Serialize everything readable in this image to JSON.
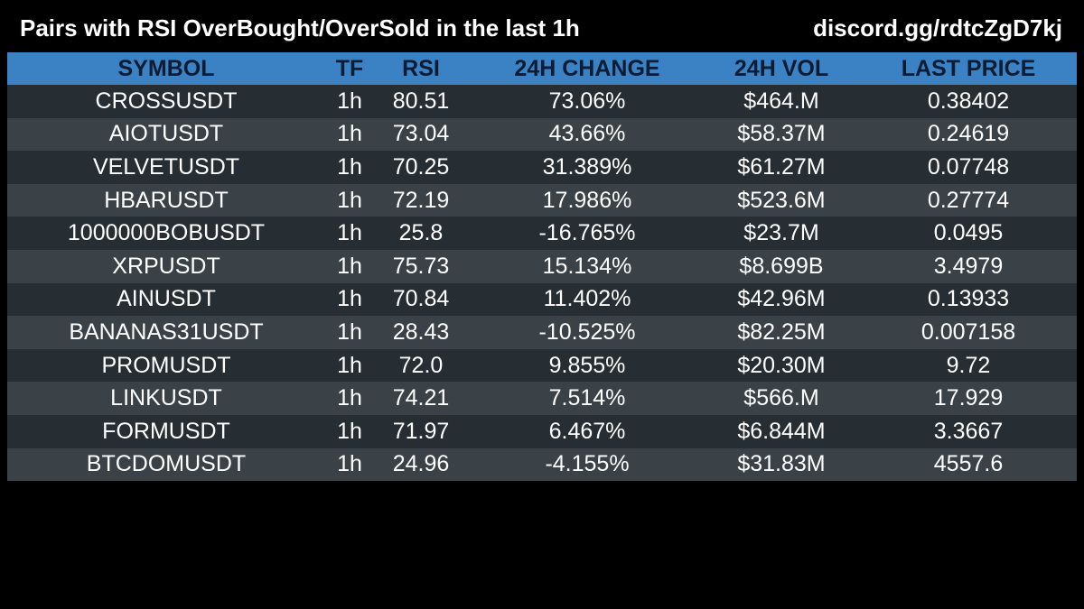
{
  "header": {
    "title": "Pairs with RSI OverBought/OverSold in the last 1h",
    "invite": "discord.gg/rdtcZgD7kj"
  },
  "table": {
    "columns": {
      "symbol": "SYMBOL",
      "tf": "TF",
      "rsi": "RSI",
      "change": "24H CHANGE",
      "vol": "24H VOL",
      "price": "LAST PRICE"
    },
    "rows": [
      {
        "symbol": "CROSSUSDT",
        "tf": "1h",
        "rsi": "80.51",
        "change": "73.06%",
        "vol": "$464.M",
        "price": "0.38402"
      },
      {
        "symbol": "AIOTUSDT",
        "tf": "1h",
        "rsi": "73.04",
        "change": "43.66%",
        "vol": "$58.37M",
        "price": "0.24619"
      },
      {
        "symbol": "VELVETUSDT",
        "tf": "1h",
        "rsi": "70.25",
        "change": "31.389%",
        "vol": "$61.27M",
        "price": "0.07748"
      },
      {
        "symbol": "HBARUSDT",
        "tf": "1h",
        "rsi": "72.19",
        "change": "17.986%",
        "vol": "$523.6M",
        "price": "0.27774"
      },
      {
        "symbol": "1000000BOBUSDT",
        "tf": "1h",
        "rsi": "25.8",
        "change": "-16.765%",
        "vol": "$23.7M",
        "price": "0.0495"
      },
      {
        "symbol": "XRPUSDT",
        "tf": "1h",
        "rsi": "75.73",
        "change": "15.134%",
        "vol": "$8.699B",
        "price": "3.4979"
      },
      {
        "symbol": "AINUSDT",
        "tf": "1h",
        "rsi": "70.84",
        "change": "11.402%",
        "vol": "$42.96M",
        "price": "0.13933"
      },
      {
        "symbol": "BANANAS31USDT",
        "tf": "1h",
        "rsi": "28.43",
        "change": "-10.525%",
        "vol": "$82.25M",
        "price": "0.007158"
      },
      {
        "symbol": "PROMUSDT",
        "tf": "1h",
        "rsi": "72.0",
        "change": "9.855%",
        "vol": "$20.30M",
        "price": "9.72"
      },
      {
        "symbol": "LINKUSDT",
        "tf": "1h",
        "rsi": "74.21",
        "change": "7.514%",
        "vol": "$566.M",
        "price": "17.929"
      },
      {
        "symbol": "FORMUSDT",
        "tf": "1h",
        "rsi": "71.97",
        "change": "6.467%",
        "vol": "$6.844M",
        "price": "3.3667"
      },
      {
        "symbol": "BTCDOMUSDT",
        "tf": "1h",
        "rsi": "24.96",
        "change": "-4.155%",
        "vol": "$31.83M",
        "price": "4557.6"
      }
    ]
  },
  "colors": {
    "background": "#000000",
    "header_row": "#3b82c4",
    "header_text": "#0d1b33",
    "row_dark": "#272e33",
    "row_light": "#3a4247",
    "text": "#ffffff"
  }
}
